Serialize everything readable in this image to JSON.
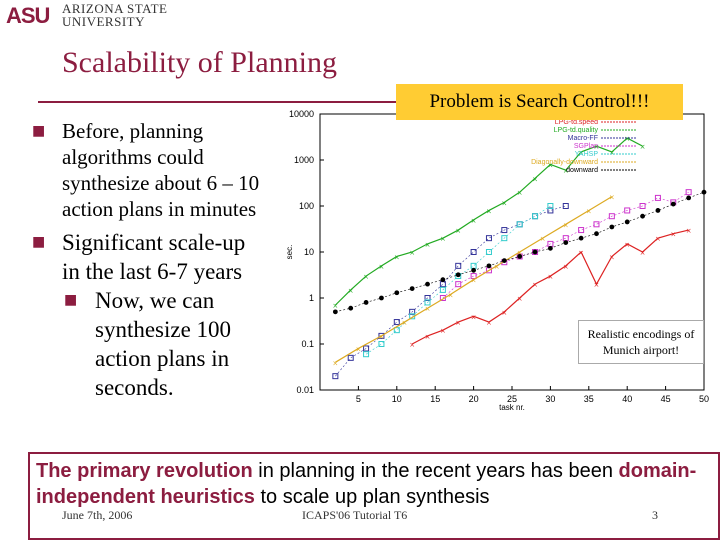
{
  "brand": {
    "mark": "ASU",
    "name_line1": "Arizona State",
    "name_line2": "University"
  },
  "title": "Scalability of Planning",
  "callout": "Problem is Search Control!!!",
  "bullets": [
    {
      "text": "Before, planning algorithms could synthesize about 6 – 10 action plans in minutes"
    },
    {
      "text": "Significant scale-up in the last 6-7 years"
    }
  ],
  "sub_bullet": "Now, we can synthesize 100 action plans in seconds.",
  "annotation": "Realistic encodings of Munich airport!",
  "conclusion": {
    "part1": "The primary revolution",
    "part2": " in planning in the recent years has been ",
    "part3": "domain-independent heuristics",
    "part4": " to scale up plan synthesis"
  },
  "footer": {
    "date": "June 7th, 2006",
    "center": "ICAPS'06 Tutorial T6",
    "page": "3"
  },
  "colors": {
    "accent": "#8c1d40",
    "callout_bg": "#ffcc33"
  },
  "chart_data": {
    "type": "scatter",
    "xlabel": "task nr.",
    "ylabel": "sec.",
    "y_scale": "log",
    "xlim": [
      0,
      50
    ],
    "ylim": [
      0.01,
      10000
    ],
    "x_ticks": [
      5,
      10,
      15,
      20,
      25,
      30,
      35,
      40,
      45,
      50
    ],
    "y_ticks": [
      "0.01",
      "0.1",
      "1",
      "10",
      "100",
      "1000",
      "10000"
    ],
    "legend_position": "top-right",
    "series": [
      {
        "name": "LPG-td.speed",
        "color": "#dd2222",
        "style": "line",
        "points": [
          [
            12,
            0.1
          ],
          [
            14,
            0.15
          ],
          [
            16,
            0.2
          ],
          [
            18,
            0.3
          ],
          [
            20,
            0.4
          ],
          [
            22,
            0.3
          ],
          [
            24,
            0.5
          ],
          [
            26,
            1
          ],
          [
            28,
            2
          ],
          [
            30,
            3
          ],
          [
            32,
            5
          ],
          [
            34,
            10
          ],
          [
            36,
            2
          ],
          [
            38,
            8
          ],
          [
            40,
            15
          ],
          [
            42,
            10
          ],
          [
            44,
            20
          ],
          [
            46,
            25
          ],
          [
            48,
            30
          ]
        ]
      },
      {
        "name": "LPG-td.quality",
        "color": "#22aa22",
        "style": "line",
        "points": [
          [
            2,
            0.7
          ],
          [
            4,
            1.5
          ],
          [
            6,
            3
          ],
          [
            8,
            5
          ],
          [
            10,
            8
          ],
          [
            12,
            10
          ],
          [
            14,
            15
          ],
          [
            16,
            20
          ],
          [
            18,
            30
          ],
          [
            20,
            50
          ],
          [
            22,
            80
          ],
          [
            24,
            120
          ],
          [
            26,
            200
          ],
          [
            28,
            400
          ],
          [
            30,
            800
          ],
          [
            32,
            600
          ],
          [
            34,
            1500
          ],
          [
            36,
            2000
          ],
          [
            38,
            1500
          ],
          [
            40,
            3000
          ],
          [
            42,
            2000
          ]
        ]
      },
      {
        "name": "Macro-FF",
        "color": "#333399",
        "style": "markers",
        "points": [
          [
            2,
            0.02
          ],
          [
            4,
            0.05
          ],
          [
            6,
            0.08
          ],
          [
            8,
            0.15
          ],
          [
            10,
            0.3
          ],
          [
            12,
            0.5
          ],
          [
            14,
            1
          ],
          [
            16,
            2
          ],
          [
            18,
            5
          ],
          [
            20,
            10
          ],
          [
            22,
            20
          ],
          [
            24,
            30
          ],
          [
            26,
            40
          ],
          [
            28,
            60
          ],
          [
            30,
            80
          ],
          [
            32,
            100
          ]
        ]
      },
      {
        "name": "SGPlan",
        "color": "#cc33cc",
        "style": "markers",
        "points": [
          [
            16,
            1
          ],
          [
            18,
            2
          ],
          [
            20,
            3
          ],
          [
            22,
            4
          ],
          [
            24,
            6
          ],
          [
            26,
            8
          ],
          [
            28,
            10
          ],
          [
            30,
            15
          ],
          [
            32,
            20
          ],
          [
            34,
            30
          ],
          [
            36,
            40
          ],
          [
            38,
            60
          ],
          [
            40,
            80
          ],
          [
            42,
            100
          ],
          [
            44,
            150
          ],
          [
            46,
            120
          ],
          [
            48,
            200
          ]
        ]
      },
      {
        "name": "YAHSP",
        "color": "#33cccc",
        "style": "markers",
        "points": [
          [
            6,
            0.06
          ],
          [
            8,
            0.1
          ],
          [
            10,
            0.2
          ],
          [
            12,
            0.4
          ],
          [
            14,
            0.8
          ],
          [
            16,
            1.5
          ],
          [
            18,
            3
          ],
          [
            20,
            5
          ],
          [
            22,
            10
          ],
          [
            24,
            20
          ],
          [
            26,
            40
          ],
          [
            28,
            60
          ],
          [
            30,
            100
          ]
        ]
      },
      {
        "name": "Diagonally-downward",
        "color": "#ddaa22",
        "style": "line",
        "points": [
          [
            2,
            0.04
          ],
          [
            5,
            0.08
          ],
          [
            8,
            0.15
          ],
          [
            11,
            0.3
          ],
          [
            14,
            0.6
          ],
          [
            17,
            1.2
          ],
          [
            20,
            2.5
          ],
          [
            23,
            5
          ],
          [
            26,
            10
          ],
          [
            29,
            20
          ],
          [
            32,
            40
          ],
          [
            35,
            80
          ],
          [
            38,
            160
          ]
        ]
      },
      {
        "name": "downward",
        "color": "#000000",
        "style": "markers",
        "points": [
          [
            2,
            0.5
          ],
          [
            4,
            0.6
          ],
          [
            6,
            0.8
          ],
          [
            8,
            1
          ],
          [
            10,
            1.3
          ],
          [
            12,
            1.6
          ],
          [
            14,
            2
          ],
          [
            16,
            2.5
          ],
          [
            18,
            3.2
          ],
          [
            20,
            4
          ],
          [
            22,
            5
          ],
          [
            24,
            6.5
          ],
          [
            26,
            8
          ],
          [
            28,
            10
          ],
          [
            30,
            12
          ],
          [
            32,
            16
          ],
          [
            34,
            20
          ],
          [
            36,
            25
          ],
          [
            38,
            35
          ],
          [
            40,
            45
          ],
          [
            42,
            60
          ],
          [
            44,
            80
          ],
          [
            46,
            110
          ],
          [
            48,
            150
          ],
          [
            50,
            200
          ]
        ]
      }
    ]
  }
}
